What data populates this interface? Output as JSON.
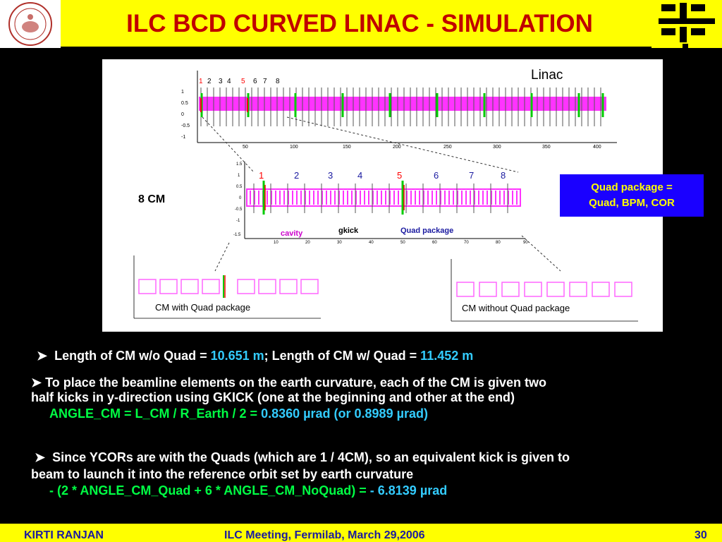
{
  "header": {
    "title": "ILC BCD CURVED LINAC - SIMULATION",
    "left_logo": "university-seal-logo",
    "right_logo": "fermilab-logo"
  },
  "figure": {
    "linac_label": "Linac",
    "cm8_label": "8 CM",
    "top_ticks": [
      "50",
      "100",
      "150",
      "200",
      "250",
      "300",
      "350",
      "400"
    ],
    "top_y_ticks": [
      "1",
      "0.5",
      "0",
      "-0.5",
      "-1"
    ],
    "top_numbers": [
      "1",
      "2",
      "3",
      "4",
      "5",
      "6",
      "7",
      "8"
    ],
    "mid_numbers": [
      "1",
      "2",
      "3",
      "4",
      "5",
      "6",
      "7",
      "8"
    ],
    "mid_ticks": [
      "10",
      "20",
      "30",
      "40",
      "50",
      "60",
      "70",
      "80",
      "90"
    ],
    "mid_y_ticks": [
      "1.5",
      "1",
      "0.5",
      "0",
      "-0.5",
      "-1",
      "-1.5"
    ],
    "cavity_label": "cavity",
    "gkick_label": "gkick",
    "quad_package_label": "Quad package",
    "cm_with_label": "CM with Quad package",
    "cm_without_label": "CM without Quad package"
  },
  "quad_box": {
    "line1": "Quad package   =",
    "line2": "Quad, BPM, COR"
  },
  "bullets": {
    "b1_prefix": "Length of CM w/o Quad  =",
    "b1_val1": "10.651 m",
    "b1_mid": ";  Length of CM w/  Quad  =",
    "b1_val2": "11.452 m",
    "b2_line1": "To place the beamline elements on the earth curvature, each of the CM is given two",
    "b2_line2": "half kicks in y-direction using GKICK (one at the beginning and other at the end)",
    "b2_formula": "ANGLE_CM =  L_CM / R_Earth / 2 =",
    "b2_value": "0.8360 µrad (or  0.8989 µrad)",
    "b3_line1": "Since YCORs are with the Quads (which are 1 / 4CM), so an equivalent kick is given to",
    "b3_line2": "beam to launch it into the reference orbit set by earth curvature",
    "b3_formula": "- (2 * ANGLE_CM_Quad + 6 * ANGLE_CM_NoQuad) =",
    "b3_value": "- 6.8139 µrad"
  },
  "footer": {
    "author": "KIRTI  RANJAN",
    "event": "ILC Meeting, Fermilab, March 29,2006",
    "page": "30"
  },
  "colors": {
    "header_bg": "#ffff00",
    "title": "#c00000",
    "cyan": "#33ccff",
    "green": "#00ff44",
    "magenta": "#ff00ff",
    "quad_box_bg": "#1a00ff"
  }
}
